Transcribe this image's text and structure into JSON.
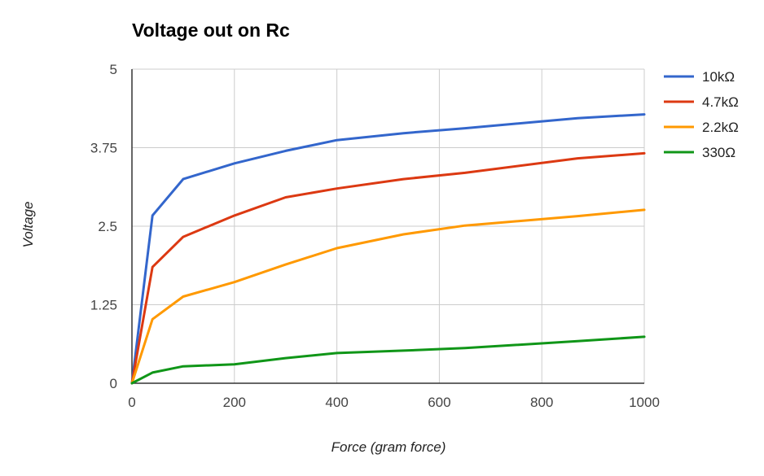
{
  "chart_data": {
    "type": "line",
    "title": "Voltage out on Rc",
    "xlabel": "Force (gram force)",
    "ylabel": "Voltage",
    "xlim": [
      0,
      1000
    ],
    "ylim": [
      0,
      5
    ],
    "x_ticks": [
      "0",
      "200",
      "400",
      "600",
      "800",
      "1000"
    ],
    "y_ticks": [
      "0",
      "1.25",
      "2.5",
      "3.75",
      "5"
    ],
    "grid": true,
    "legend_position": "right",
    "series": [
      {
        "name": "10kΩ",
        "color": "#3366cc",
        "x": [
          0,
          40,
          100,
          200,
          300,
          400,
          530,
          650,
          870,
          1000
        ],
        "y": [
          0,
          2.67,
          3.25,
          3.5,
          3.7,
          3.87,
          3.98,
          4.06,
          4.22,
          4.28
        ]
      },
      {
        "name": "4.7kΩ",
        "color": "#dc3912",
        "x": [
          0,
          40,
          100,
          200,
          300,
          400,
          530,
          650,
          870,
          1000
        ],
        "y": [
          0,
          1.85,
          2.33,
          2.67,
          2.96,
          3.1,
          3.25,
          3.35,
          3.58,
          3.66
        ]
      },
      {
        "name": "2.2kΩ",
        "color": "#ff9900",
        "x": [
          0,
          40,
          100,
          200,
          300,
          400,
          530,
          650,
          870,
          1000
        ],
        "y": [
          0,
          1.02,
          1.38,
          1.61,
          1.89,
          2.15,
          2.37,
          2.51,
          2.66,
          2.76
        ]
      },
      {
        "name": "330Ω",
        "color": "#109618",
        "x": [
          0,
          40,
          100,
          200,
          300,
          400,
          530,
          650,
          870,
          1000
        ],
        "y": [
          0,
          0.17,
          0.27,
          0.3,
          0.4,
          0.48,
          0.52,
          0.56,
          0.67,
          0.74
        ]
      }
    ]
  }
}
